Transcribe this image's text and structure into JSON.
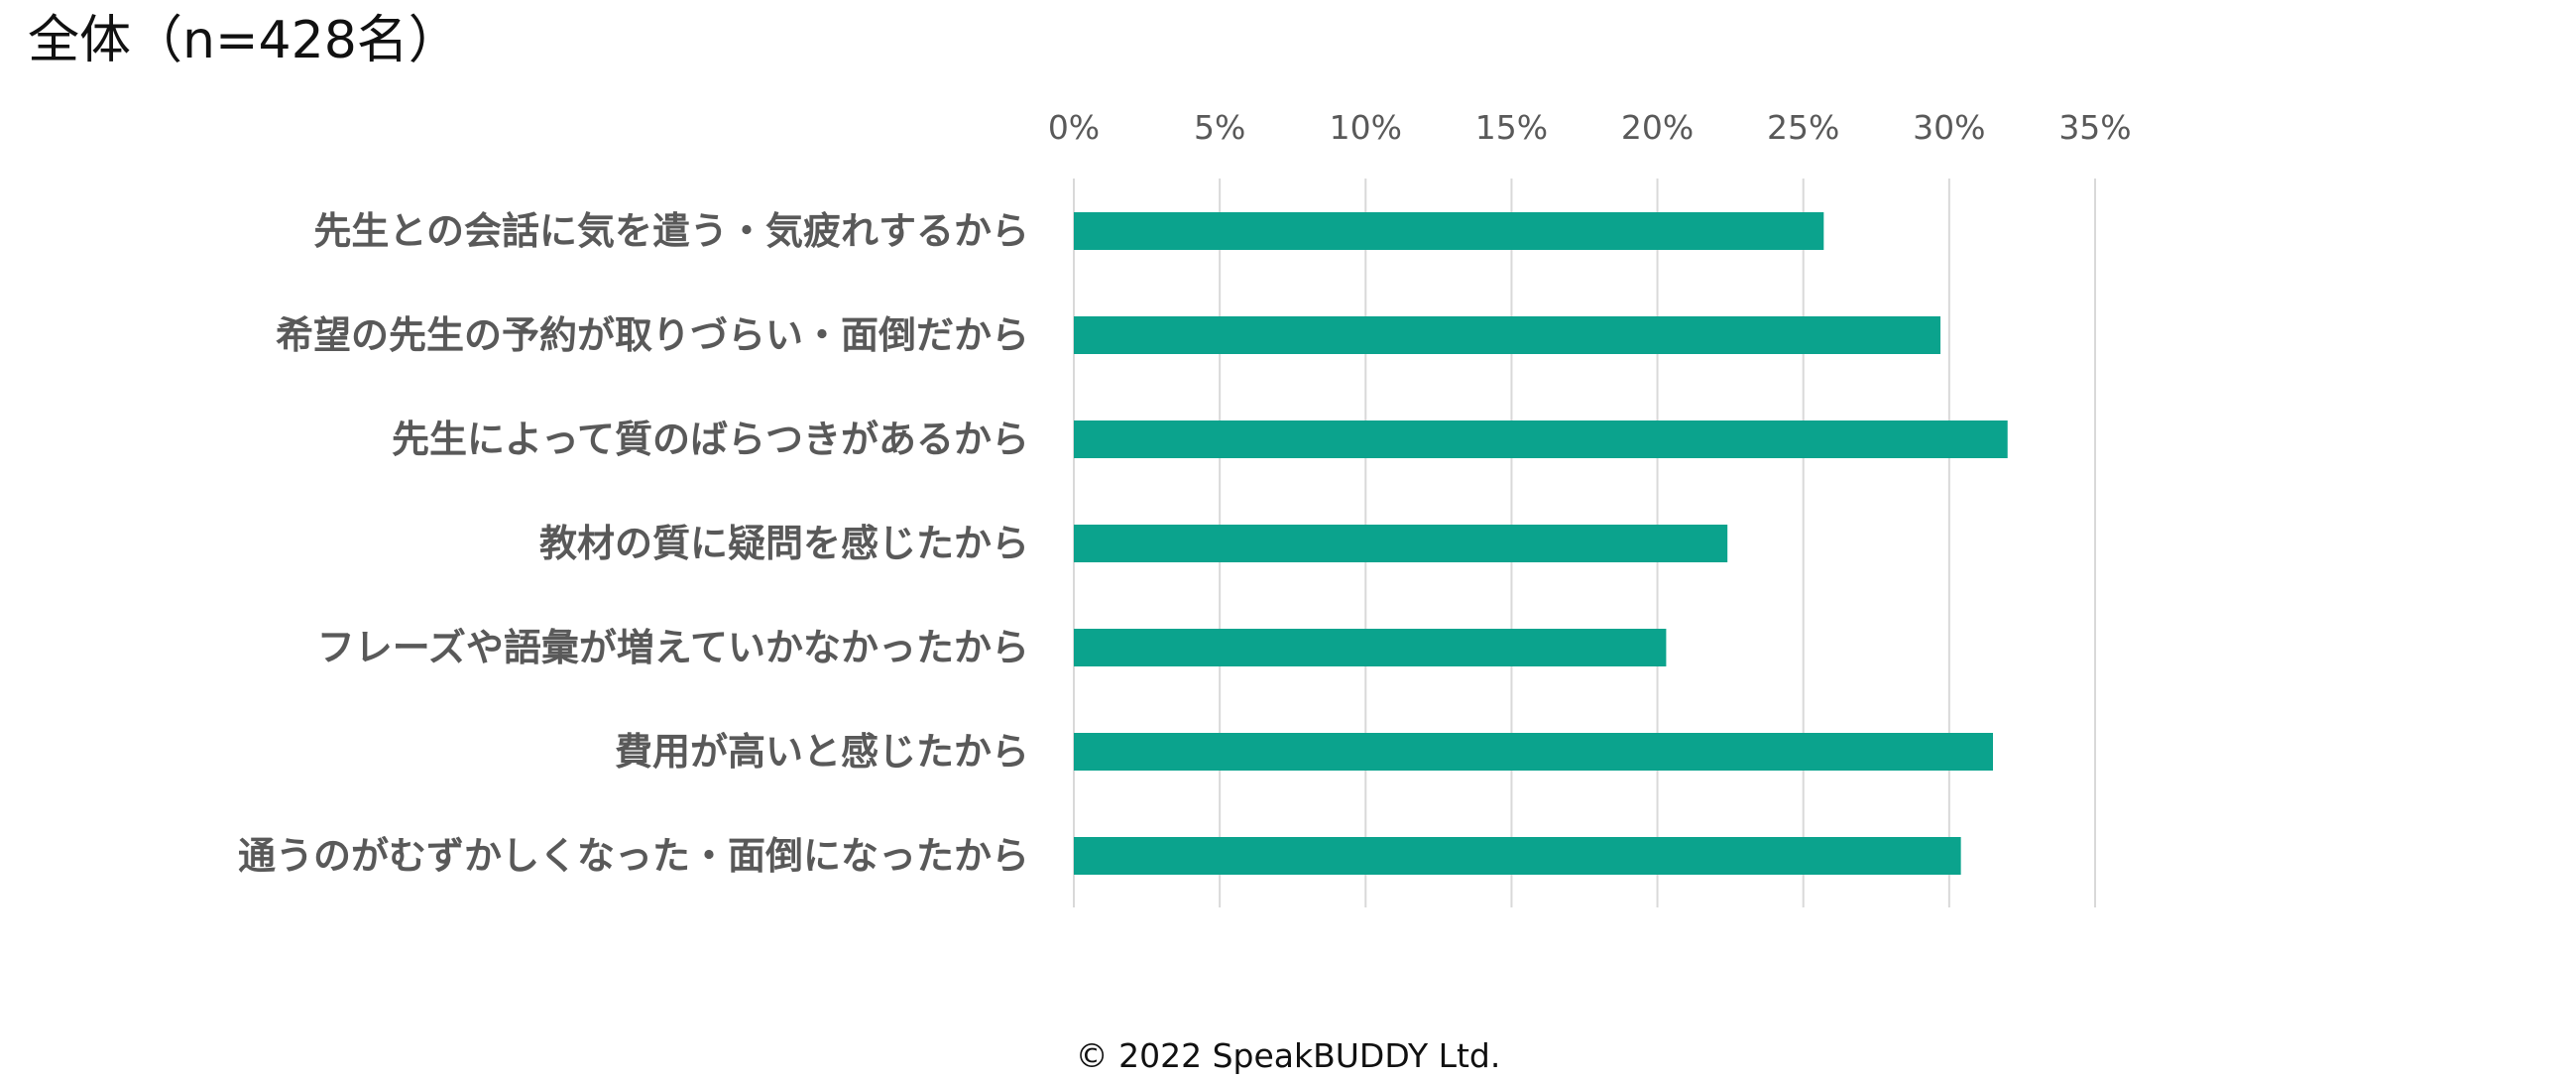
{
  "title": "全体（n=428名）",
  "copyright": "© 2022 SpeakBUDDY Ltd.",
  "chart_data": {
    "type": "bar",
    "orientation": "horizontal",
    "x_ticks": [
      "0%",
      "5%",
      "10%",
      "15%",
      "20%",
      "25%",
      "30%",
      "35%"
    ],
    "xlim": [
      0,
      35
    ],
    "x_unit": "%",
    "grid": true,
    "legend": "none",
    "bar_color": "#0ba38d",
    "categories": [
      "先生との会話に気を遣う・気疲れするから",
      "希望の先生の予約が取りづらい・面倒だから",
      "先生によって質のばらつきがあるから",
      "教材の質に疑問を感じたから",
      "フレーズや語彙が増えていかなかったから",
      "費用が高いと感じたから",
      "通うのがむずかしくなった・面倒になったから"
    ],
    "values": [
      25.7,
      29.7,
      32.0,
      22.4,
      20.3,
      31.5,
      30.4
    ]
  }
}
